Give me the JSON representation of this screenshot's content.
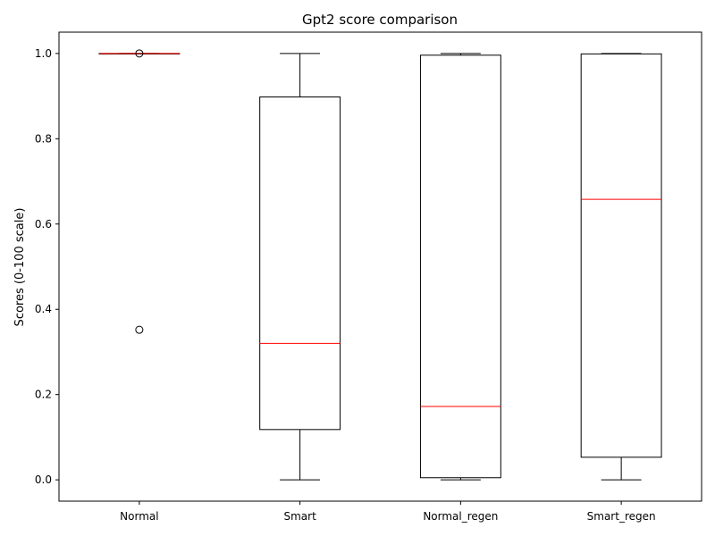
{
  "chart_data": {
    "type": "box",
    "title": "Gpt2 score comparison",
    "xlabel": "",
    "ylabel": "Scores (0-100 scale)",
    "ylim": [
      -0.05,
      1.05
    ],
    "yticks": [
      "0.0",
      "0.2",
      "0.4",
      "0.6",
      "0.8",
      "1.0"
    ],
    "ytick_values": [
      0.0,
      0.2,
      0.4,
      0.6,
      0.8,
      1.0
    ],
    "grid": false,
    "categories": [
      "Normal",
      "Smart",
      "Normal_regen",
      "Smart_regen"
    ],
    "boxes": [
      {
        "whisker_low": 1.0,
        "q1": 1.0,
        "median": 1.0,
        "q3": 1.0,
        "whisker_high": 1.0,
        "outliers": [
          1.0,
          0.352
        ]
      },
      {
        "whisker_low": 0.0,
        "q1": 0.118,
        "median": 0.32,
        "q3": 0.898,
        "whisker_high": 1.0,
        "outliers": []
      },
      {
        "whisker_low": 0.0,
        "q1": 0.005,
        "median": 0.172,
        "q3": 0.996,
        "whisker_high": 1.0,
        "outliers": []
      },
      {
        "whisker_low": 0.0,
        "q1": 0.053,
        "median": 0.658,
        "q3": 0.999,
        "whisker_high": 1.0,
        "outliers": []
      }
    ],
    "colors": {
      "box": "#000000",
      "median": "#ff0000",
      "outlier": "#000000"
    }
  }
}
